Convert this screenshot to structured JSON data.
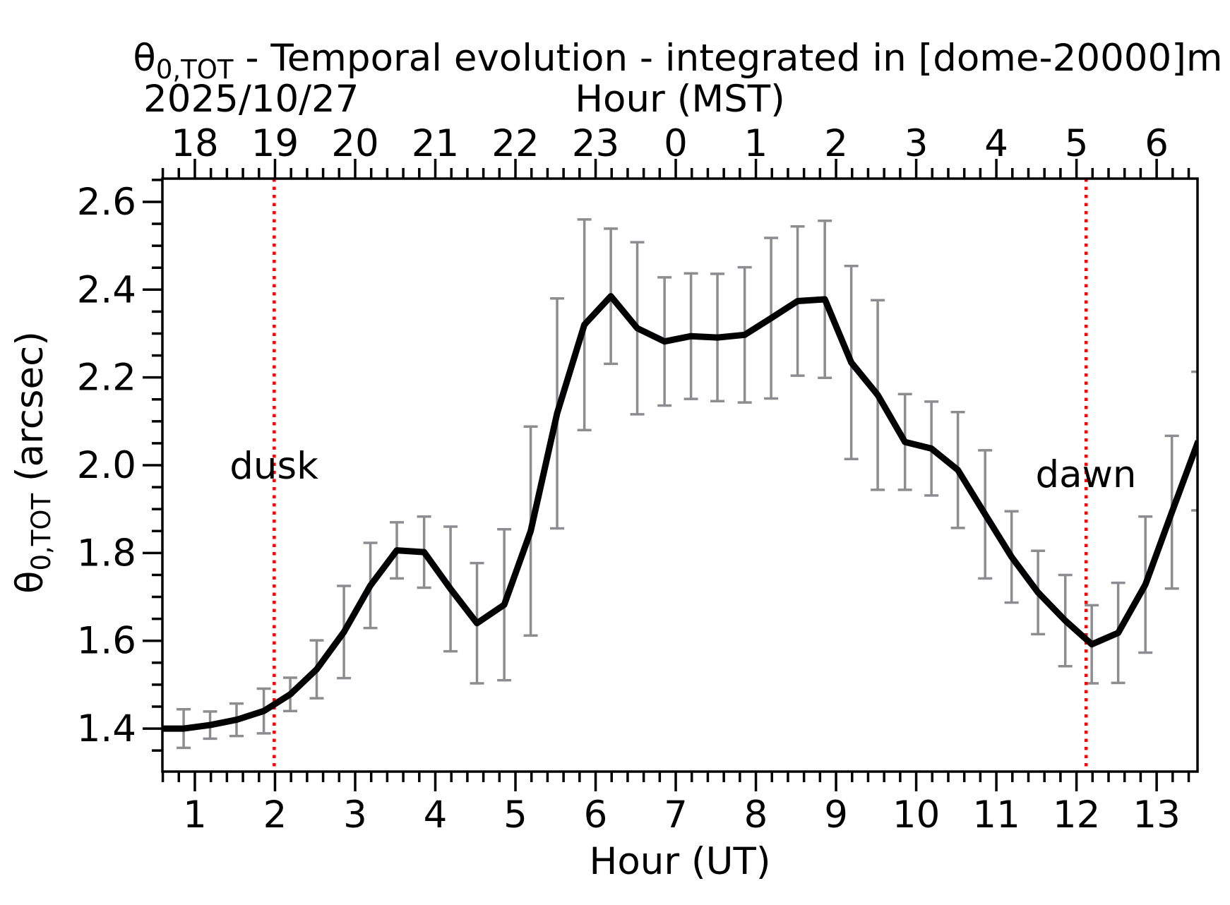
{
  "figure": {
    "date_label": "2025/10/27",
    "top_axis_label": "Hour (MST)",
    "bottom_axis_label": "Hour (UT)",
    "background_color": "#ffffff"
  },
  "chart_data": {
    "type": "line",
    "title": "θ0,TOT - Temporal evolution - integrated in [dome-20000]m",
    "title_parts": {
      "theta": "θ",
      "sub": "0,TOT",
      "rest": " - Temporal evolution - integrated in [dome-20000]m"
    },
    "ylabel_parts": {
      "theta": "θ",
      "sub": "0,TOT",
      "rest": " (arcsec)"
    },
    "xlabel": "Hour (UT)",
    "xlabel_top": "Hour (MST)",
    "ylabel": "θ0,TOT (arcsec)",
    "xlim": [
      0.595,
      13.51
    ],
    "ylim": [
      1.302,
      2.653
    ],
    "grid": false,
    "legend": null,
    "x_ticks_bottom": [
      1,
      2,
      3,
      4,
      5,
      6,
      7,
      8,
      9,
      10,
      11,
      12,
      13
    ],
    "x_tick_labels_bottom": [
      "1",
      "2",
      "3",
      "4",
      "5",
      "6",
      "7",
      "8",
      "9",
      "10",
      "11",
      "12",
      "13"
    ],
    "x_tick_labels_top": [
      "18",
      "19",
      "20",
      "21",
      "22",
      "23",
      "0",
      "1",
      "2",
      "3",
      "4",
      "5",
      "6"
    ],
    "x_minor_tick_step": 0.2,
    "y_ticks": [
      1.4,
      1.6,
      1.8,
      2.0,
      2.2,
      2.4,
      2.6
    ],
    "y_tick_labels": [
      "1.4",
      "1.6",
      "1.8",
      "2.0",
      "2.2",
      "2.4",
      "2.6"
    ],
    "y_minor_tick_step": 0.05,
    "lead_point": {
      "x": 0.52,
      "y": 1.4
    },
    "x": [
      0.86,
      1.19,
      1.52,
      1.86,
      2.19,
      2.52,
      2.86,
      3.19,
      3.52,
      3.86,
      4.19,
      4.52,
      4.86,
      5.19,
      5.52,
      5.86,
      6.19,
      6.52,
      6.86,
      7.19,
      7.52,
      7.86,
      8.19,
      8.52,
      8.86,
      9.19,
      9.52,
      9.86,
      10.19,
      10.52,
      10.86,
      11.19,
      11.52,
      11.86,
      12.19,
      12.52,
      12.86,
      13.19,
      13.52
    ],
    "y": [
      1.4,
      1.408,
      1.42,
      1.44,
      1.478,
      1.535,
      1.62,
      1.726,
      1.806,
      1.802,
      1.718,
      1.64,
      1.682,
      1.85,
      2.118,
      2.32,
      2.385,
      2.312,
      2.282,
      2.294,
      2.291,
      2.297,
      2.335,
      2.374,
      2.378,
      2.234,
      2.16,
      2.053,
      2.038,
      1.989,
      1.888,
      1.791,
      1.71,
      1.646,
      1.592,
      1.618,
      1.728,
      1.893,
      2.055
    ],
    "yerr": [
      0.044,
      0.031,
      0.037,
      0.051,
      0.038,
      0.066,
      0.105,
      0.097,
      0.064,
      0.081,
      0.142,
      0.137,
      0.172,
      0.238,
      0.262,
      0.24,
      0.154,
      0.196,
      0.146,
      0.143,
      0.145,
      0.154,
      0.183,
      0.17,
      0.179,
      0.22,
      0.216,
      0.109,
      0.107,
      0.132,
      0.146,
      0.104,
      0.095,
      0.104,
      0.089,
      0.114,
      0.155,
      0.174,
      0.158
    ],
    "annotations": [
      {
        "label": "dusk",
        "x": 1.99,
        "label_y": 2.0
      },
      {
        "label": "dawn",
        "x": 12.12,
        "label_y": 1.98
      }
    ],
    "line_color": "#000000",
    "errorbar_color": "#8c8c91",
    "annotation_color": "#ff0000"
  }
}
